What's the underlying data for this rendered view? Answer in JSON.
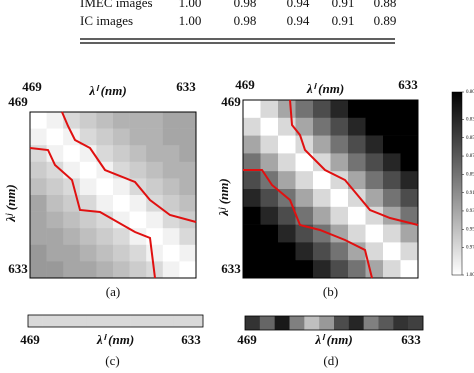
{
  "table": {
    "rows": [
      [
        "IMEC images",
        "1.00",
        "0.98",
        "0.94",
        "0.91",
        "0.88"
      ],
      [
        "IC images",
        "1.00",
        "0.98",
        "0.94",
        "0.91",
        "0.89"
      ]
    ]
  },
  "panels": [
    {
      "label": "(a)",
      "x_start": "469",
      "x_end": "633",
      "x_axis": "λⁱ (nm)",
      "y_start": "469",
      "y_end": "633",
      "y_axis": "λʲ (nm)",
      "cells": [
        [
          1,
          0.99,
          0.97,
          0.96,
          0.95,
          0.94,
          0.94,
          0.94,
          0.93,
          0.93
        ],
        [
          0.99,
          1,
          0.99,
          0.97,
          0.96,
          0.95,
          0.94,
          0.94,
          0.93,
          0.93
        ],
        [
          0.97,
          0.99,
          1,
          0.99,
          0.97,
          0.96,
          0.95,
          0.94,
          0.94,
          0.93
        ],
        [
          0.96,
          0.97,
          0.99,
          1,
          0.99,
          0.97,
          0.96,
          0.95,
          0.94,
          0.94
        ],
        [
          0.95,
          0.96,
          0.97,
          0.99,
          1,
          0.99,
          0.97,
          0.96,
          0.95,
          0.94
        ],
        [
          0.93,
          0.95,
          0.96,
          0.97,
          0.99,
          1,
          0.99,
          0.97,
          0.96,
          0.95
        ],
        [
          0.93,
          0.94,
          0.95,
          0.96,
          0.97,
          0.99,
          1,
          0.99,
          0.97,
          0.96
        ],
        [
          0.93,
          0.93,
          0.94,
          0.95,
          0.96,
          0.97,
          0.99,
          1,
          0.99,
          0.97
        ],
        [
          0.92,
          0.93,
          0.93,
          0.94,
          0.95,
          0.96,
          0.97,
          0.99,
          1,
          0.99
        ],
        [
          0.92,
          0.92,
          0.93,
          0.93,
          0.94,
          0.95,
          0.96,
          0.97,
          0.99,
          1
        ]
      ]
    },
    {
      "label": "(b)",
      "x_start": "469",
      "x_end": "633",
      "x_axis": "λⁱ (nm)",
      "y_start": "469",
      "y_end": "633",
      "y_axis": "λʲ (nm)",
      "cells": [
        [
          1,
          0.97,
          0.93,
          0.89,
          0.86,
          0.83,
          0.8,
          0.8,
          0.8,
          0.8
        ],
        [
          0.97,
          1,
          0.97,
          0.93,
          0.89,
          0.86,
          0.83,
          0.8,
          0.8,
          0.8
        ],
        [
          0.93,
          0.97,
          1,
          0.97,
          0.93,
          0.89,
          0.86,
          0.83,
          0.8,
          0.8
        ],
        [
          0.89,
          0.93,
          0.97,
          1,
          0.97,
          0.93,
          0.89,
          0.86,
          0.83,
          0.8
        ],
        [
          0.86,
          0.89,
          0.93,
          0.97,
          1,
          0.97,
          0.93,
          0.89,
          0.86,
          0.83
        ],
        [
          0.83,
          0.86,
          0.89,
          0.93,
          0.97,
          1,
          0.97,
          0.93,
          0.89,
          0.86
        ],
        [
          0.8,
          0.83,
          0.86,
          0.89,
          0.93,
          0.97,
          1,
          0.97,
          0.93,
          0.89
        ],
        [
          0.8,
          0.8,
          0.83,
          0.86,
          0.89,
          0.93,
          0.97,
          1,
          0.97,
          0.93
        ],
        [
          0.8,
          0.8,
          0.8,
          0.83,
          0.86,
          0.89,
          0.93,
          0.97,
          1,
          0.97
        ],
        [
          0.8,
          0.8,
          0.8,
          0.8,
          0.83,
          0.86,
          0.89,
          0.93,
          0.97,
          1
        ]
      ]
    }
  ],
  "strips": [
    {
      "label": "(c)",
      "x_start": "469",
      "x_axis": "λⁱ (nm)",
      "x_end": "633",
      "values": [
        0.97,
        0.97,
        0.97,
        0.97,
        0.97,
        0.97,
        0.97,
        0.97,
        0.97,
        0.97,
        0.97,
        0.97
      ]
    },
    {
      "label": "(d)",
      "x_start": "469",
      "x_axis": "λⁱ (nm)",
      "x_end": "633",
      "values": [
        0.84,
        0.88,
        0.82,
        0.9,
        0.95,
        0.92,
        0.86,
        0.83,
        0.9,
        0.87,
        0.84,
        0.85
      ]
    }
  ],
  "colorbar": {
    "clim": [
      0.8,
      1.0
    ],
    "ticks": [
      {
        "value": 0.8,
        "label": "0.80"
      },
      0.83,
      0.85,
      0.87,
      0.89,
      0.91,
      0.93,
      0.95,
      0.97,
      {
        "value": 1.0,
        "label": "1.00"
      }
    ]
  }
}
